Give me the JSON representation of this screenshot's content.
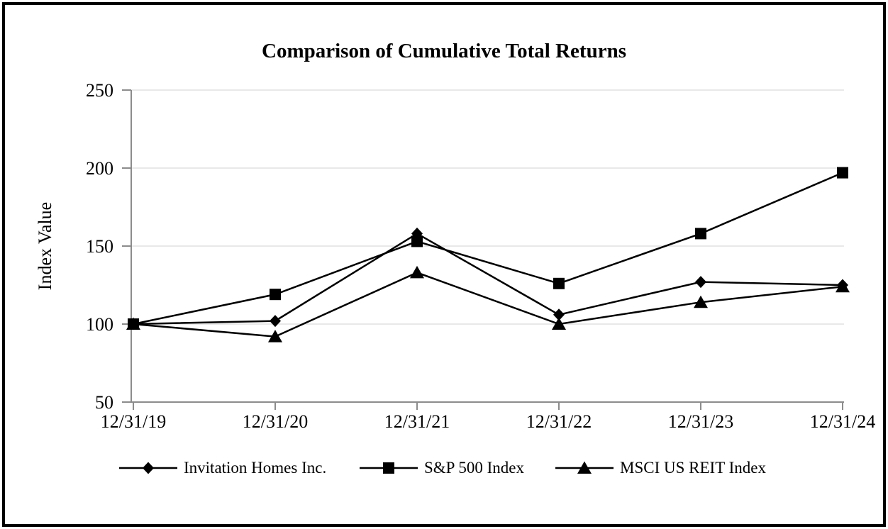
{
  "title": "Comparison of Cumulative Total Returns",
  "chart_data": {
    "type": "line",
    "title": "Comparison of Cumulative Total Returns",
    "xlabel": "",
    "ylabel": "Index Value",
    "categories": [
      "12/31/19",
      "12/31/20",
      "12/31/21",
      "12/31/22",
      "12/31/23",
      "12/31/24"
    ],
    "series": [
      {
        "name": "Invitation Homes Inc.",
        "marker": "diamond",
        "values": [
          100,
          102,
          158,
          106,
          127,
          125
        ]
      },
      {
        "name": "S&P 500 Index",
        "marker": "square",
        "values": [
          100,
          119,
          153,
          126,
          158,
          197
        ]
      },
      {
        "name": "MSCI US REIT Index",
        "marker": "triangle",
        "values": [
          100,
          92,
          133,
          100,
          114,
          124
        ]
      }
    ],
    "ylim": [
      50,
      250
    ],
    "y_ticks": [
      50,
      100,
      150,
      200,
      250
    ],
    "grid": "horizontal",
    "legend_position": "bottom",
    "colors": {
      "series": "#000000",
      "gridline": "#E0E0E0",
      "axis": "#8C8C8C",
      "text": "#000000",
      "background": "#FFFFFF",
      "frame_border": "#000000"
    }
  }
}
